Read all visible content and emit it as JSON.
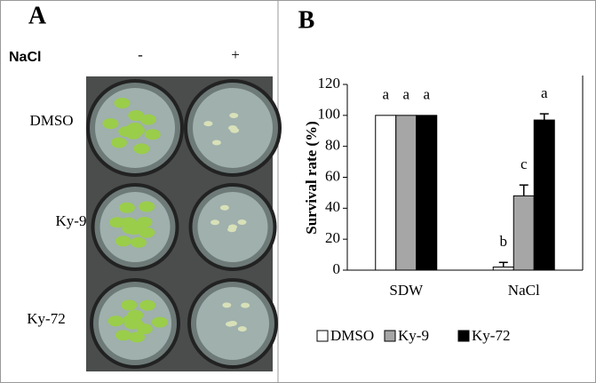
{
  "panel_a": {
    "label": "A",
    "treatment": "NaCl",
    "conditions": [
      "-",
      "+"
    ],
    "rows": [
      "DMSO",
      "Ky-9",
      "Ky-72"
    ]
  },
  "chart_data": {
    "type": "bar",
    "panel_label": "B",
    "ylabel": "Survival rate (%)",
    "categories": [
      "SDW",
      "NaCl"
    ],
    "series": [
      {
        "name": "DMSO",
        "color": "#ffffff",
        "values": [
          100,
          2
        ],
        "errors": [
          0,
          3
        ],
        "letters": [
          "a",
          "b"
        ]
      },
      {
        "name": "Ky-9",
        "color": "#a6a6a6",
        "values": [
          100,
          48
        ],
        "errors": [
          0,
          7
        ],
        "letters": [
          "a",
          "c"
        ]
      },
      {
        "name": "Ky-72",
        "color": "#000000",
        "values": [
          100,
          97
        ],
        "errors": [
          0,
          4
        ],
        "letters": [
          "a",
          "a"
        ]
      }
    ],
    "ylim": [
      0,
      120
    ],
    "yticks": [
      0,
      20,
      40,
      60,
      80,
      100,
      120
    ]
  }
}
